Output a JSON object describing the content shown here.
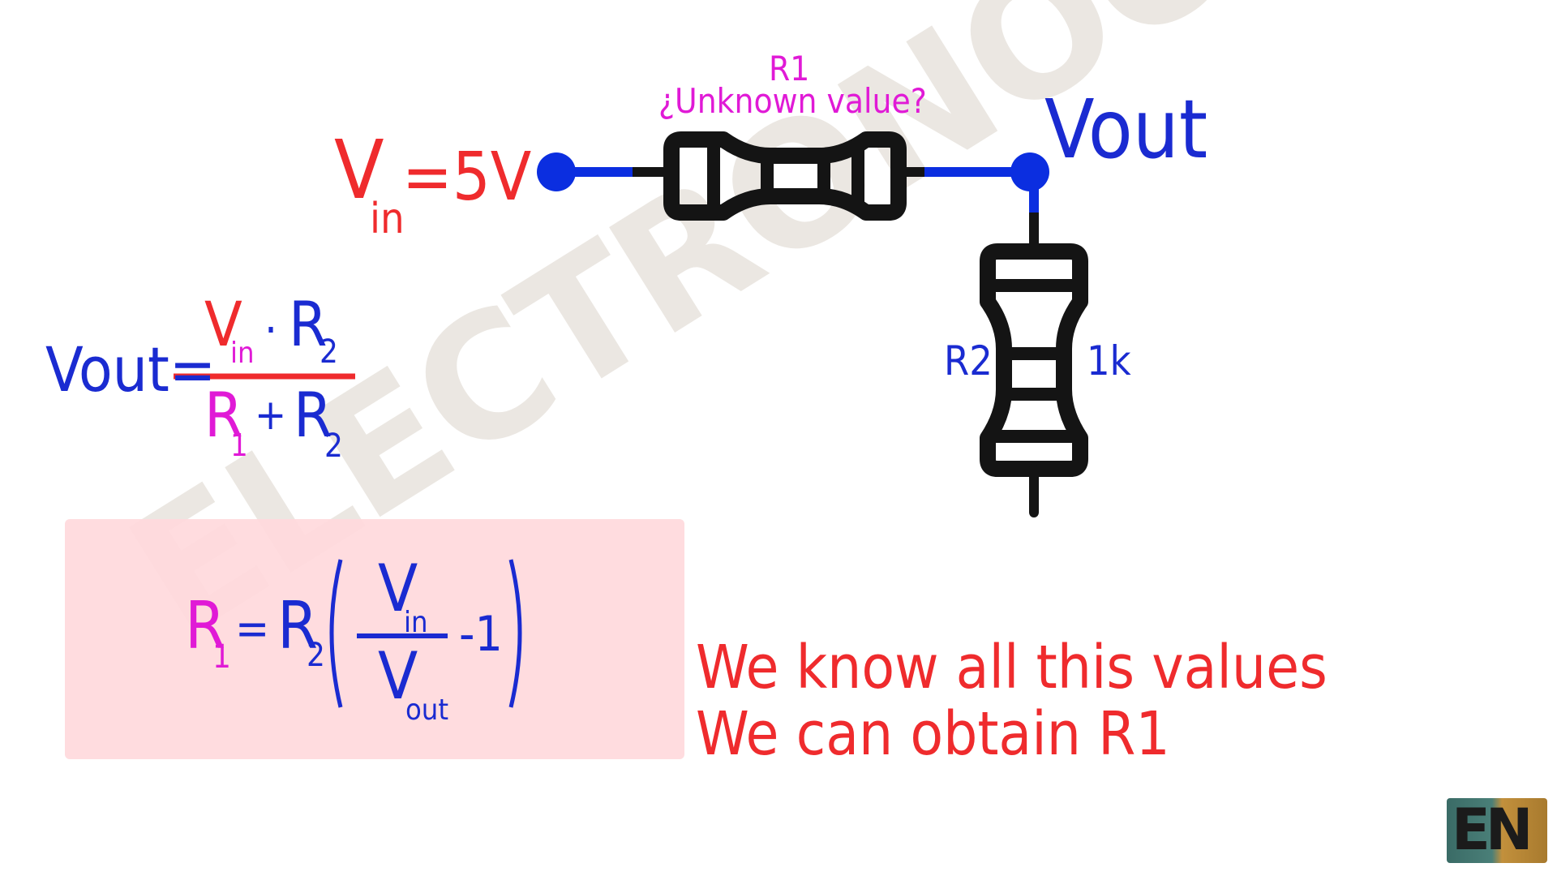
{
  "colors": {
    "red": "#ef2b2d",
    "blue": "#1a2bd1",
    "magenta": "#e01ad6",
    "resistor": "#141414",
    "wire_blue": "#0b2ee0",
    "highlight_box": "#ffd9dc",
    "watermark": "#e6e2dc"
  },
  "watermark": {
    "text": "ELECTRONOOBS"
  },
  "circuit": {
    "r1_label": "R1",
    "r1_note": "¿Unknown value?",
    "vin_symbol": "V",
    "vin_sub": "in",
    "vin_value": "=5V",
    "vout_label": "Vout",
    "r2_label": "R2",
    "r2_value": "1k"
  },
  "formula1": {
    "lhs": "Vout=",
    "num_v": "V",
    "num_v_sub": "in",
    "num_dot": "·",
    "num_r": "R",
    "num_r_sub": "2",
    "den_r1": "R",
    "den_r1_sub": "1",
    "den_plus": "+",
    "den_r2": "R",
    "den_r2_sub": "2"
  },
  "formula2": {
    "r1": "R",
    "r1_sub": "1",
    "eq": "=",
    "r2": "R",
    "r2_sub": "2",
    "num_v": "V",
    "num_v_sub": "in",
    "den_v": "V",
    "den_v_sub": "out",
    "minus_one": "-1"
  },
  "notes": {
    "line1": "We know all this values",
    "line2": "We can obtain R1"
  },
  "logo": {
    "text": "EN",
    "icon": "electronoobs-logo-icon"
  }
}
